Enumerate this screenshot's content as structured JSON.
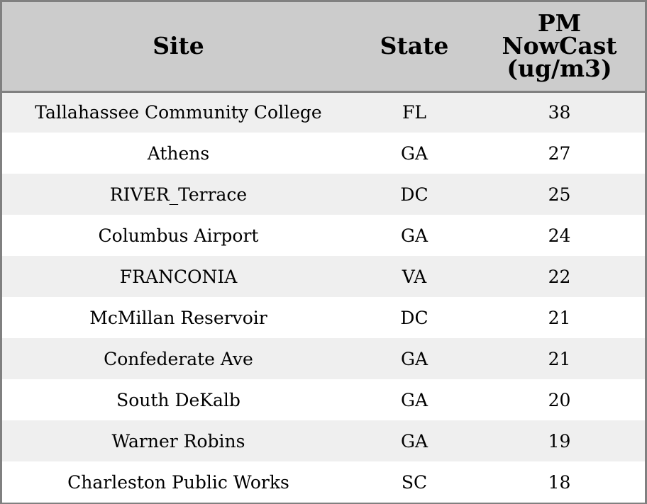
{
  "chart_data": {
    "type": "table",
    "columns": [
      "Site",
      "State",
      "PM NowCast (ug/m3)"
    ],
    "header_lines": {
      "site": "Site",
      "state": "State",
      "pm": [
        "PM",
        "NowCast",
        "(ug/m3)"
      ]
    },
    "rows": [
      {
        "site": "Tallahassee Community College",
        "state": "FL",
        "pm": 38
      },
      {
        "site": "Athens",
        "state": "GA",
        "pm": 27
      },
      {
        "site": "RIVER_Terrace",
        "state": "DC",
        "pm": 25
      },
      {
        "site": "Columbus Airport",
        "state": "GA",
        "pm": 24
      },
      {
        "site": "FRANCONIA",
        "state": "VA",
        "pm": 22
      },
      {
        "site": "McMillan Reservoir",
        "state": "DC",
        "pm": 21
      },
      {
        "site": "Confederate Ave",
        "state": "GA",
        "pm": 21
      },
      {
        "site": "South DeKalb",
        "state": "GA",
        "pm": 20
      },
      {
        "site": "Warner Robins",
        "state": "GA",
        "pm": 19
      },
      {
        "site": "Charleston Public Works",
        "state": "SC",
        "pm": 18
      }
    ]
  },
  "colors": {
    "header_bg": "#cccccc",
    "border": "#808080",
    "row_alt_bg": "#efefef",
    "row_bg": "#ffffff"
  }
}
